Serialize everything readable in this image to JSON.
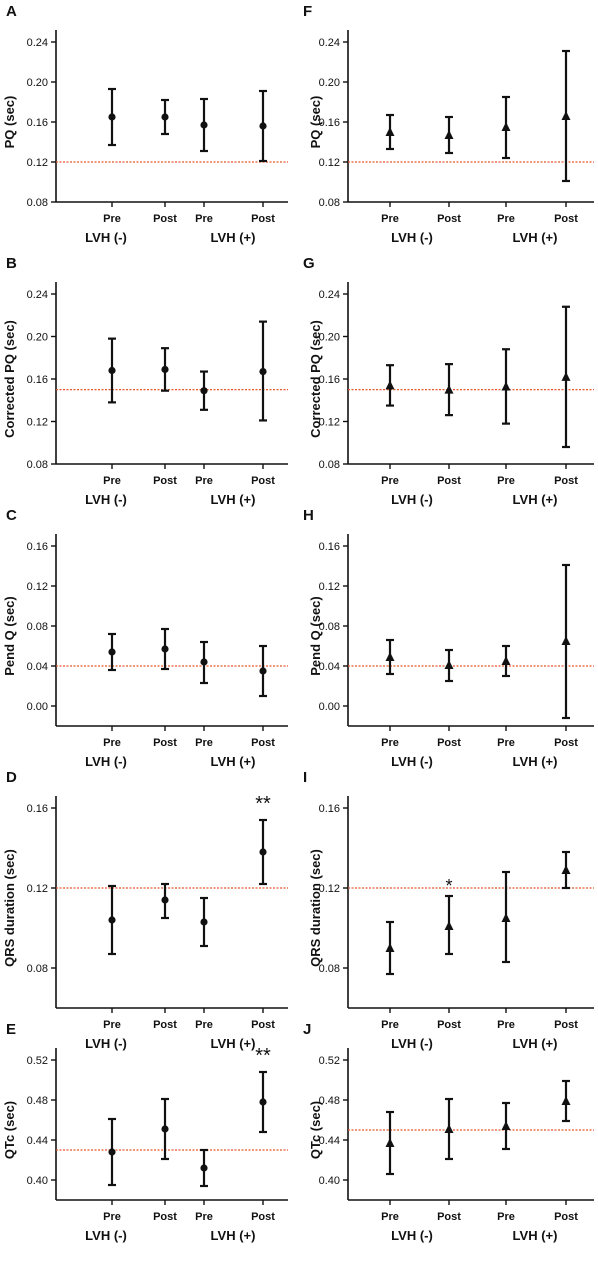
{
  "colors": {
    "reference_line": "#e8572a",
    "marks": "#111111"
  },
  "chart_data": [
    {
      "panel": "A",
      "type": "scatter",
      "marker": "circle",
      "ylabel": "PQ (sec)",
      "ylim": [
        0.08,
        0.24
      ],
      "yticks": [
        0.08,
        0.12,
        0.16,
        0.2,
        0.24
      ],
      "categories": [
        "Pre",
        "Post",
        "Pre",
        "Post"
      ],
      "groups": [
        "LVH (-)",
        "LVH (+)"
      ],
      "means": [
        0.165,
        0.165,
        0.157,
        0.156
      ],
      "lower": [
        0.137,
        0.148,
        0.131,
        0.121
      ],
      "upper": [
        0.193,
        0.182,
        0.183,
        0.191
      ],
      "reference": 0.12,
      "annotations": []
    },
    {
      "panel": "B",
      "type": "scatter",
      "marker": "circle",
      "ylabel": "Corrected PQ (sec)",
      "ylim": [
        0.08,
        0.24
      ],
      "yticks": [
        0.08,
        0.12,
        0.16,
        0.2,
        0.24
      ],
      "categories": [
        "Pre",
        "Post",
        "Pre",
        "Post"
      ],
      "groups": [
        "LVH (-)",
        "LVH (+)"
      ],
      "means": [
        0.168,
        0.169,
        0.149,
        0.167
      ],
      "lower": [
        0.138,
        0.149,
        0.131,
        0.121
      ],
      "upper": [
        0.198,
        0.189,
        0.167,
        0.214
      ],
      "reference": 0.15,
      "annotations": []
    },
    {
      "panel": "C",
      "type": "scatter",
      "marker": "circle",
      "ylabel": "Pend Q (sec)",
      "ylim": [
        -0.02,
        0.16
      ],
      "yticks": [
        0.0,
        0.04,
        0.08,
        0.12,
        0.16
      ],
      "categories": [
        "Pre",
        "Post",
        "Pre",
        "Post"
      ],
      "groups": [
        "LVH (-)",
        "LVH (+)"
      ],
      "means": [
        0.054,
        0.057,
        0.044,
        0.035
      ],
      "lower": [
        0.036,
        0.037,
        0.023,
        0.01
      ],
      "upper": [
        0.072,
        0.077,
        0.064,
        0.06
      ],
      "reference": 0.04,
      "annotations": []
    },
    {
      "panel": "D",
      "type": "scatter",
      "marker": "circle",
      "ylabel": "QRS duration (sec)",
      "ylim": [
        0.06,
        0.16
      ],
      "yticks": [
        0.08,
        0.12,
        0.16
      ],
      "categories": [
        "Pre",
        "Post",
        "Pre",
        "Post"
      ],
      "groups": [
        "LVH (-)",
        "LVH (+)"
      ],
      "means": [
        0.104,
        0.114,
        0.103,
        0.138
      ],
      "lower": [
        0.087,
        0.105,
        0.091,
        0.122
      ],
      "upper": [
        0.121,
        0.122,
        0.115,
        0.154
      ],
      "reference": 0.12,
      "annotations": [
        {
          "index": 3,
          "text": "**"
        }
      ]
    },
    {
      "panel": "E",
      "type": "scatter",
      "marker": "circle",
      "ylabel": "QTc (sec)",
      "ylim": [
        0.38,
        0.52
      ],
      "yticks": [
        0.4,
        0.44,
        0.48,
        0.52
      ],
      "categories": [
        "Pre",
        "Post",
        "Pre",
        "Post"
      ],
      "groups": [
        "LVH (-)",
        "LVH (+)"
      ],
      "means": [
        0.428,
        0.451,
        0.412,
        0.478
      ],
      "lower": [
        0.395,
        0.421,
        0.394,
        0.448
      ],
      "upper": [
        0.461,
        0.481,
        0.43,
        0.508
      ],
      "reference": 0.43,
      "annotations": [
        {
          "index": 3,
          "text": "**"
        }
      ]
    },
    {
      "panel": "F",
      "type": "scatter",
      "marker": "triangle",
      "ylabel": "PQ (sec)",
      "ylim": [
        0.08,
        0.24
      ],
      "yticks": [
        0.08,
        0.12,
        0.16,
        0.2,
        0.24
      ],
      "categories": [
        "Pre",
        "Post",
        "Pre",
        "Post"
      ],
      "groups": [
        "LVH (-)",
        "LVH (+)"
      ],
      "means": [
        0.15,
        0.147,
        0.155,
        0.166
      ],
      "lower": [
        0.133,
        0.129,
        0.124,
        0.101
      ],
      "upper": [
        0.167,
        0.165,
        0.185,
        0.231
      ],
      "reference": 0.12,
      "annotations": []
    },
    {
      "panel": "G",
      "type": "scatter",
      "marker": "triangle",
      "ylabel": "Corrected PQ (sec)",
      "ylim": [
        0.08,
        0.24
      ],
      "yticks": [
        0.08,
        0.12,
        0.16,
        0.2,
        0.24
      ],
      "categories": [
        "Pre",
        "Post",
        "Pre",
        "Post"
      ],
      "groups": [
        "LVH (-)",
        "LVH (+)"
      ],
      "means": [
        0.154,
        0.15,
        0.153,
        0.162
      ],
      "lower": [
        0.135,
        0.126,
        0.118,
        0.096
      ],
      "upper": [
        0.173,
        0.174,
        0.188,
        0.228
      ],
      "reference": 0.15,
      "annotations": []
    },
    {
      "panel": "H",
      "type": "scatter",
      "marker": "triangle",
      "ylabel": "Pend Q (sec)",
      "ylim": [
        -0.02,
        0.16
      ],
      "yticks": [
        0.0,
        0.04,
        0.08,
        0.12,
        0.16
      ],
      "categories": [
        "Pre",
        "Post",
        "Pre",
        "Post"
      ],
      "groups": [
        "LVH (-)",
        "LVH (+)"
      ],
      "means": [
        0.049,
        0.041,
        0.045,
        0.065
      ],
      "lower": [
        0.032,
        0.025,
        0.03,
        -0.012
      ],
      "upper": [
        0.066,
        0.056,
        0.06,
        0.141
      ],
      "reference": 0.04,
      "annotations": []
    },
    {
      "panel": "I",
      "type": "scatter",
      "marker": "triangle",
      "ylabel": "QRS duration (sec)",
      "ylim": [
        0.06,
        0.16
      ],
      "yticks": [
        0.08,
        0.12,
        0.16
      ],
      "categories": [
        "Pre",
        "Post",
        "Pre",
        "Post"
      ],
      "groups": [
        "LVH (-)",
        "LVH (+)"
      ],
      "means": [
        0.09,
        0.101,
        0.105,
        0.129
      ],
      "lower": [
        0.077,
        0.087,
        0.083,
        0.12
      ],
      "upper": [
        0.103,
        0.116,
        0.128,
        0.138
      ],
      "reference": 0.12,
      "annotations": [
        {
          "index": 1,
          "text": "*"
        }
      ]
    },
    {
      "panel": "J",
      "type": "scatter",
      "marker": "triangle",
      "ylabel": "QTc (sec)",
      "ylim": [
        0.38,
        0.52
      ],
      "yticks": [
        0.4,
        0.44,
        0.48,
        0.52
      ],
      "categories": [
        "Pre",
        "Post",
        "Pre",
        "Post"
      ],
      "groups": [
        "LVH (-)",
        "LVH (+)"
      ],
      "means": [
        0.437,
        0.451,
        0.454,
        0.479
      ],
      "lower": [
        0.406,
        0.421,
        0.431,
        0.459
      ],
      "upper": [
        0.468,
        0.481,
        0.477,
        0.499
      ],
      "reference": 0.45,
      "annotations": []
    }
  ]
}
